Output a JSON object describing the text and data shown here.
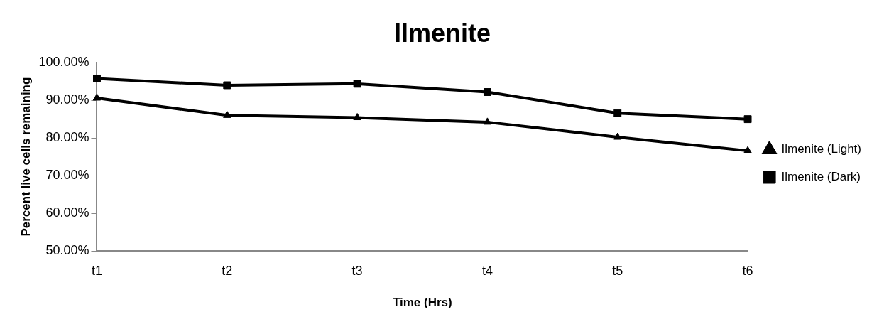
{
  "chart_data": {
    "type": "line",
    "title": "Ilmenite",
    "xlabel": "Time (Hrs)",
    "ylabel": "Percent live cells remaining",
    "categories": [
      "t1",
      "t2",
      "t3",
      "t4",
      "t5",
      "t6"
    ],
    "series": [
      {
        "name": "Ilmenite (Light)",
        "color": "#000000",
        "marker": "triangle",
        "values": [
          90.6,
          86.0,
          85.4,
          84.2,
          80.2,
          76.6
        ]
      },
      {
        "name": "Ilmenite (Dark)",
        "color": "#000000",
        "marker": "square",
        "values": [
          95.8,
          94.0,
          94.4,
          92.2,
          86.6,
          85.0
        ]
      }
    ],
    "ylim": [
      50,
      100
    ],
    "yticks": [
      {
        "value": 50,
        "label": "50.00%"
      },
      {
        "value": 60,
        "label": "60.00%"
      },
      {
        "value": 70,
        "label": "70.00%"
      },
      {
        "value": 80,
        "label": "80.00%"
      },
      {
        "value": 90,
        "label": "90.00%"
      },
      {
        "value": 100,
        "label": "100.00%"
      }
    ],
    "grid": false,
    "legend": "right",
    "line_style": "solid"
  }
}
